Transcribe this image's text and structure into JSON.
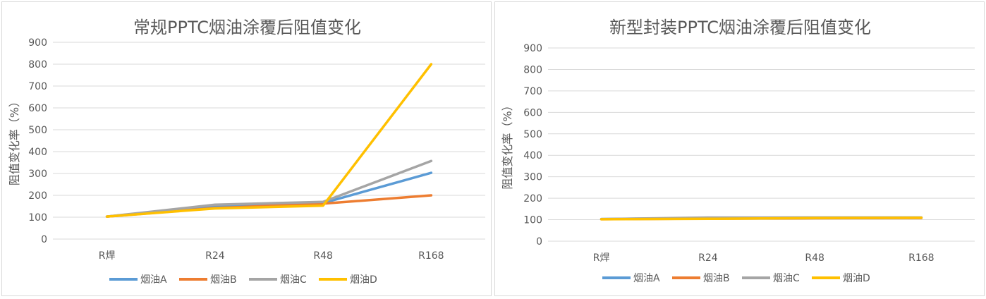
{
  "chart_data": [
    {
      "type": "line",
      "title": "常规PPTC烟油涂覆后阻值变化",
      "xlabel": "",
      "ylabel": "阻值变化率（%）",
      "categories": [
        "R焊",
        "R24",
        "R48",
        "R168"
      ],
      "ylim": [
        0,
        900
      ],
      "yticks": [
        0,
        100,
        200,
        300,
        400,
        500,
        600,
        700,
        800,
        900
      ],
      "grid": true,
      "legend_position": "bottom",
      "series": [
        {
          "name": "烟油A",
          "color": "#5B9BD5",
          "values": [
            103,
            152,
            165,
            303
          ]
        },
        {
          "name": "烟油B",
          "color": "#ED7D31",
          "values": [
            103,
            142,
            162,
            200
          ]
        },
        {
          "name": "烟油C",
          "color": "#A5A5A5",
          "values": [
            103,
            157,
            170,
            357
          ]
        },
        {
          "name": "烟油D",
          "color": "#FFC000",
          "values": [
            103,
            140,
            153,
            800
          ]
        }
      ]
    },
    {
      "type": "line",
      "title": "新型封装PPTC烟油涂覆后阻值变化",
      "xlabel": "",
      "ylabel": "阻值变化率（%）",
      "categories": [
        "R焊",
        "R24",
        "R48",
        "R168"
      ],
      "ylim": [
        0,
        900
      ],
      "yticks": [
        0,
        100,
        200,
        300,
        400,
        500,
        600,
        700,
        800,
        900
      ],
      "grid": true,
      "legend_position": "bottom",
      "series": [
        {
          "name": "烟油A",
          "color": "#5B9BD5",
          "values": [
            103,
            108,
            110,
            110
          ]
        },
        {
          "name": "烟油B",
          "color": "#ED7D31",
          "values": [
            102,
            105,
            107,
            108
          ]
        },
        {
          "name": "烟油C",
          "color": "#A5A5A5",
          "values": [
            103,
            110,
            110,
            110
          ]
        },
        {
          "name": "烟油D",
          "color": "#FFC000",
          "values": [
            102,
            104,
            108,
            109
          ]
        }
      ]
    }
  ]
}
